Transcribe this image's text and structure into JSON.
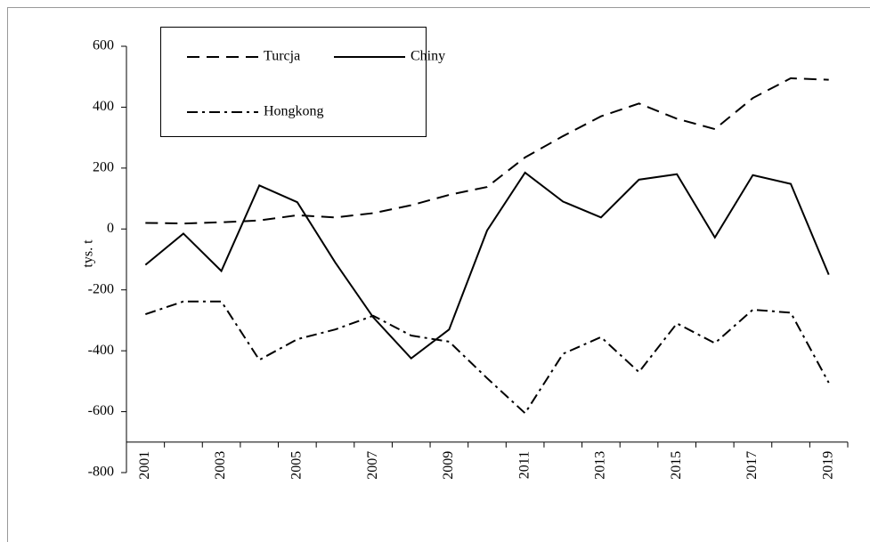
{
  "chart_data": {
    "type": "line",
    "y_label": "tys. t",
    "categories": [
      "2001",
      null,
      "2003",
      null,
      "2005",
      null,
      "2007",
      null,
      "2009",
      null,
      "2011",
      null,
      "2013",
      null,
      "2015",
      null,
      "2017",
      null,
      "2019"
    ],
    "series": [
      {
        "name": "Turcja",
        "color": "#000000",
        "dash": "dashed",
        "values": [
          20,
          18,
          22,
          28,
          45,
          38,
          52,
          78,
          112,
          138,
          235,
          305,
          370,
          412,
          362,
          328,
          430,
          495,
          490
        ]
      },
      {
        "name": "Chiny",
        "color": "#000000",
        "dash": "solid",
        "values": [
          -118,
          -15,
          -138,
          143,
          88,
          -110,
          -290,
          -425,
          -330,
          -5,
          185,
          90,
          38,
          162,
          180,
          -28,
          177,
          148,
          -150
        ]
      },
      {
        "name": "Hongkong",
        "color": "#000000",
        "dash": "dashdot",
        "values": [
          -280,
          -238,
          -238,
          -430,
          -362,
          -330,
          -285,
          -350,
          -370,
          -490,
          -605,
          -410,
          -355,
          -470,
          -310,
          -375,
          -265,
          -275,
          -505
        ]
      }
    ],
    "ylim": [
      -800,
      600
    ],
    "yticks": [
      -800,
      -600,
      -400,
      -200,
      0,
      200,
      400,
      600
    ],
    "x_axis_at": -700,
    "grid": false,
    "legend": "top-left"
  }
}
